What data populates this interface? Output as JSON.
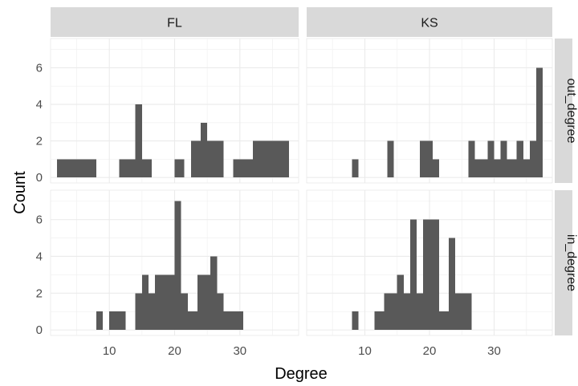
{
  "chart_data": {
    "type": "bar",
    "subtype": "faceted-histogram",
    "title": "",
    "xlabel": "Degree",
    "ylabel": "Count",
    "xlim": [
      1,
      39
    ],
    "ylim": [
      -0.3,
      7.6
    ],
    "x_ticks": [
      10,
      20,
      30
    ],
    "y_ticks": [
      0,
      2,
      4,
      6
    ],
    "grid": true,
    "bar_color": "#595959",
    "strip_color": "#d9d9d9",
    "panel_background": "#ffffff",
    "grid_color": "#ebebeb",
    "columns": [
      "FL",
      "KS"
    ],
    "rows": [
      "out_degree",
      "in_degree"
    ],
    "panels": [
      {
        "column": "FL",
        "row": "out_degree",
        "bins": [
          {
            "x0": 2,
            "x1": 8,
            "count": 1
          },
          {
            "x0": 11.5,
            "x1": 14,
            "count": 1
          },
          {
            "x0": 14,
            "x1": 15,
            "count": 4
          },
          {
            "x0": 15,
            "x1": 16.5,
            "count": 1
          },
          {
            "x0": 20,
            "x1": 21.5,
            "count": 1
          },
          {
            "x0": 22.5,
            "x1": 24,
            "count": 2
          },
          {
            "x0": 24,
            "x1": 25,
            "count": 3
          },
          {
            "x0": 25,
            "x1": 27.5,
            "count": 2
          },
          {
            "x0": 29,
            "x1": 32,
            "count": 1
          },
          {
            "x0": 32,
            "x1": 37.5,
            "count": 2
          }
        ]
      },
      {
        "column": "KS",
        "row": "out_degree",
        "bins": [
          {
            "x0": 8,
            "x1": 9,
            "count": 1
          },
          {
            "x0": 13.5,
            "x1": 14.5,
            "count": 2
          },
          {
            "x0": 18.5,
            "x1": 20.5,
            "count": 2
          },
          {
            "x0": 20.5,
            "x1": 21.5,
            "count": 1
          },
          {
            "x0": 26,
            "x1": 27,
            "count": 2
          },
          {
            "x0": 27,
            "x1": 29,
            "count": 1
          },
          {
            "x0": 29,
            "x1": 30,
            "count": 2
          },
          {
            "x0": 30,
            "x1": 31,
            "count": 1
          },
          {
            "x0": 31,
            "x1": 32,
            "count": 2
          },
          {
            "x0": 32,
            "x1": 33.5,
            "count": 1
          },
          {
            "x0": 33.5,
            "x1": 34.5,
            "count": 2
          },
          {
            "x0": 34.5,
            "x1": 35.5,
            "count": 1
          },
          {
            "x0": 35.5,
            "x1": 36.5,
            "count": 2
          },
          {
            "x0": 36.5,
            "x1": 37.5,
            "count": 6
          }
        ]
      },
      {
        "column": "FL",
        "row": "in_degree",
        "bins": [
          {
            "x0": 8,
            "x1": 9,
            "count": 1
          },
          {
            "x0": 10,
            "x1": 12.5,
            "count": 1
          },
          {
            "x0": 14,
            "x1": 15,
            "count": 2
          },
          {
            "x0": 15,
            "x1": 16,
            "count": 3
          },
          {
            "x0": 16,
            "x1": 17,
            "count": 2
          },
          {
            "x0": 17,
            "x1": 20,
            "count": 3
          },
          {
            "x0": 20,
            "x1": 21,
            "count": 7
          },
          {
            "x0": 21,
            "x1": 22,
            "count": 2
          },
          {
            "x0": 22,
            "x1": 23.5,
            "count": 1
          },
          {
            "x0": 23.5,
            "x1": 25.5,
            "count": 3
          },
          {
            "x0": 25.5,
            "x1": 26.5,
            "count": 4
          },
          {
            "x0": 26.5,
            "x1": 27.5,
            "count": 2
          },
          {
            "x0": 27.5,
            "x1": 30.5,
            "count": 1
          }
        ]
      },
      {
        "column": "KS",
        "row": "in_degree",
        "bins": [
          {
            "x0": 8,
            "x1": 9,
            "count": 1
          },
          {
            "x0": 11.5,
            "x1": 13,
            "count": 1
          },
          {
            "x0": 13,
            "x1": 15,
            "count": 2
          },
          {
            "x0": 15,
            "x1": 16,
            "count": 3
          },
          {
            "x0": 16,
            "x1": 17,
            "count": 2
          },
          {
            "x0": 17,
            "x1": 18,
            "count": 6
          },
          {
            "x0": 18,
            "x1": 19,
            "count": 2
          },
          {
            "x0": 19,
            "x1": 21.5,
            "count": 6
          },
          {
            "x0": 21.5,
            "x1": 23,
            "count": 1
          },
          {
            "x0": 23,
            "x1": 24,
            "count": 5
          },
          {
            "x0": 24,
            "x1": 26.5,
            "count": 2
          }
        ]
      }
    ]
  }
}
